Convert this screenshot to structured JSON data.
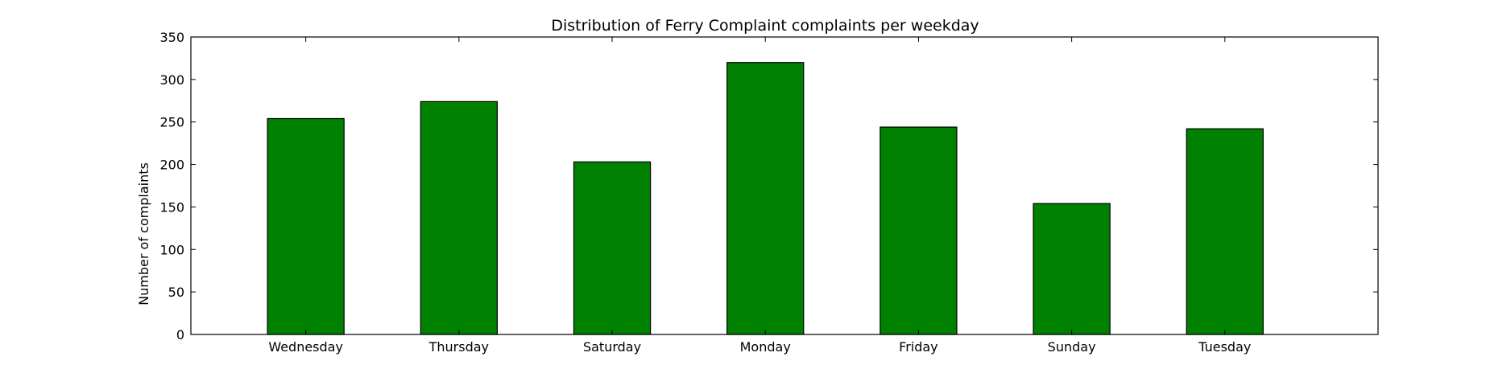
{
  "chart_data": {
    "type": "bar",
    "title": "Distribution of  Ferry Complaint complaints per weekday",
    "xlabel": "",
    "ylabel": "Number of complaints",
    "categories": [
      "Wednesday",
      "Thursday",
      "Saturday",
      "Monday",
      "Friday",
      "Sunday",
      "Tuesday"
    ],
    "values": [
      254,
      274,
      203,
      320,
      244,
      154,
      242
    ],
    "ylim": [
      0,
      350
    ],
    "yticks": [
      0,
      50,
      100,
      150,
      200,
      250,
      300,
      350
    ],
    "grid": false,
    "legend": "none",
    "bar_color": "#008000",
    "edge_color": "#000000"
  }
}
